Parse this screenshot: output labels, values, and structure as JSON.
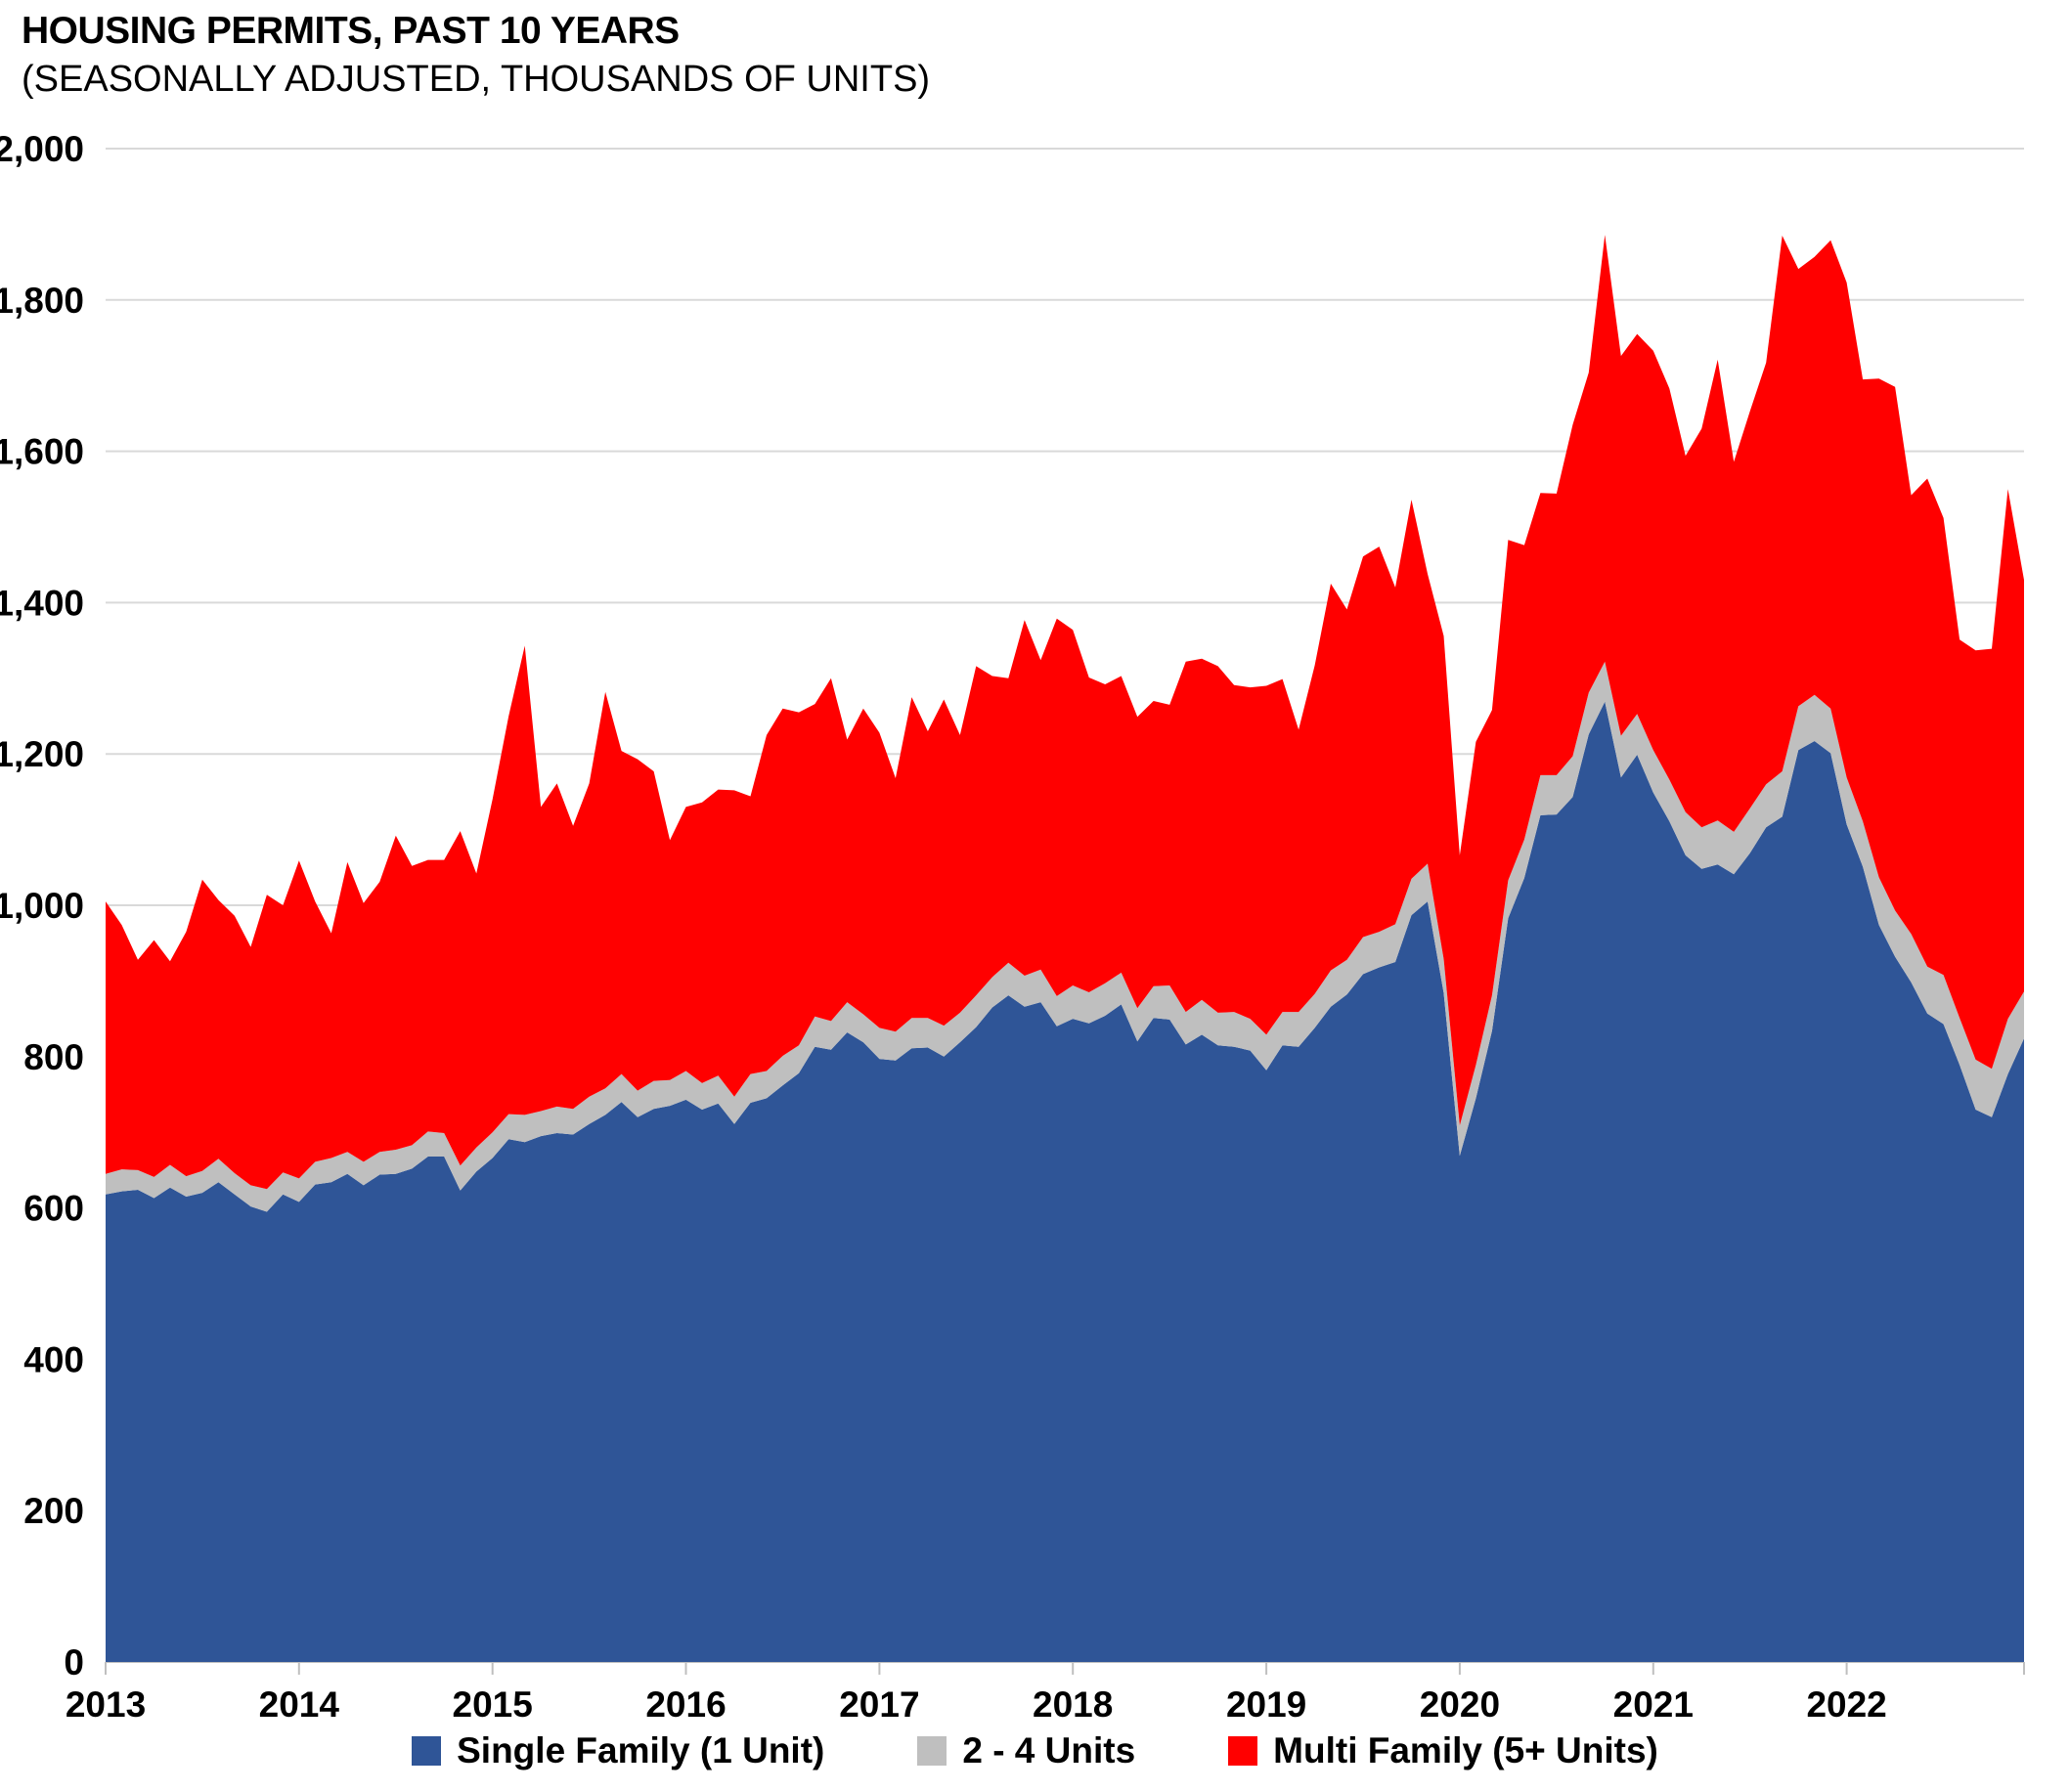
{
  "chart_data": {
    "type": "area",
    "stacked": true,
    "title": "HOUSING PERMITS, PAST 10 YEARS",
    "subtitle": "(SEASONALLY ADJUSTED, THOUSANDS OF UNITS)",
    "x_range": {
      "start": "2013-04",
      "end": "2023-03",
      "frequency": "monthly"
    },
    "x_tick_labels": [
      "2013",
      "2014",
      "2015",
      "2016",
      "2017",
      "2018",
      "2019",
      "2020",
      "2021",
      "2022"
    ],
    "x_tick_every_n_points": 12,
    "ylim": [
      0,
      2000
    ],
    "y_tick_step": 200,
    "y_tick_labels": [
      "0",
      "200",
      "400",
      "600",
      "800",
      "1,000",
      "1,200",
      "1,400",
      "1,600",
      "1,800",
      "2,000"
    ],
    "grid": "horizontal",
    "gridline_color": "#D9D9D9",
    "axis_color": "#BFBFBF",
    "background_color": "#FFFFFF",
    "legend_position": "bottom",
    "series": [
      {
        "name": "Single Family (1 Unit)",
        "color": "#2F5597",
        "values": [
          618,
          622,
          624,
          613,
          627,
          615,
          620,
          634,
          618,
          602,
          595,
          618,
          608,
          631,
          634,
          645,
          630,
          644,
          645,
          652,
          668,
          668,
          623,
          648,
          666,
          691,
          687,
          695,
          699,
          697,
          711,
          723,
          740,
          720,
          731,
          735,
          743,
          730,
          738,
          711,
          739,
          745,
          762,
          778,
          813,
          809,
          832,
          819,
          797,
          795,
          811,
          812,
          800,
          819,
          839,
          865,
          881,
          866,
          872,
          840,
          850,
          844,
          854,
          869,
          820,
          851,
          849,
          816,
          829,
          815,
          813,
          808,
          782,
          815,
          813,
          838,
          866,
          882,
          909,
          918,
          925,
          987,
          1005,
          884,
          669,
          745,
          834,
          983,
          1036,
          1119,
          1120,
          1143,
          1226,
          1269,
          1169,
          1199,
          1149,
          1111,
          1066,
          1048,
          1054,
          1041,
          1069,
          1103,
          1117,
          1205,
          1217,
          1201,
          1107,
          1051,
          974,
          932,
          898,
          857,
          843,
          789,
          730,
          720,
          777,
          824
        ]
      },
      {
        "name": "2 - 4 Units",
        "color": "#BFBFBF",
        "values": [
          27,
          29,
          26,
          28,
          30,
          27,
          29,
          31,
          28,
          28,
          30,
          29,
          31,
          30,
          32,
          29,
          31,
          30,
          32,
          31,
          33,
          31,
          33,
          32,
          34,
          33,
          36,
          33,
          35,
          34,
          36,
          35,
          37,
          35,
          37,
          34,
          38,
          35,
          37,
          36,
          38,
          36,
          39,
          37,
          40,
          38,
          40,
          37,
          41,
          38,
          40,
          39,
          41,
          39,
          42,
          40,
          43,
          41,
          43,
          40,
          44,
          41,
          43,
          42,
          44,
          42,
          45,
          43,
          46,
          43,
          46,
          42,
          47,
          44,
          46,
          45,
          48,
          46,
          49,
          47,
          50,
          48,
          50,
          45,
          40,
          44,
          47,
          50,
          51,
          53,
          52,
          54,
          55,
          53,
          55,
          54,
          56,
          55,
          57,
          55,
          58,
          56,
          59,
          57,
          60,
          58,
          61,
          59,
          62,
          60,
          63,
          61,
          64,
          62,
          65,
          62,
          66,
          64,
          73,
          62
        ]
      },
      {
        "name": "Multi Family (5+ Units)",
        "color": "#FF0000",
        "values": [
          360,
          323,
          278,
          313,
          269,
          323,
          385,
          342,
          340,
          315,
          389,
          353,
          420,
          344,
          297,
          383,
          342,
          357,
          415,
          369,
          359,
          361,
          442,
          362,
          440,
          526,
          620,
          402,
          427,
          374,
          414,
          524,
          427,
          438,
          409,
          317,
          349,
          371,
          378,
          405,
          367,
          444,
          459,
          440,
          413,
          453,
          347,
          404,
          390,
          335,
          424,
          379,
          431,
          367,
          435,
          398,
          376,
          470,
          409,
          499,
          470,
          416,
          395,
          392,
          385,
          377,
          371,
          463,
          451,
          458,
          432,
          438,
          461,
          440,
          373,
          434,
          511,
          463,
          503,
          509,
          445,
          501,
          383,
          427,
          357,
          427,
          377,
          450,
          389,
          373,
          372,
          438,
          423,
          564,
          502,
          502,
          528,
          517,
          471,
          527,
          609,
          489,
          525,
          557,
          708,
          578,
          579,
          619,
          654,
          584,
          659,
          692,
          580,
          645,
          604,
          500,
          541,
          555,
          700,
          544
        ]
      }
    ]
  }
}
